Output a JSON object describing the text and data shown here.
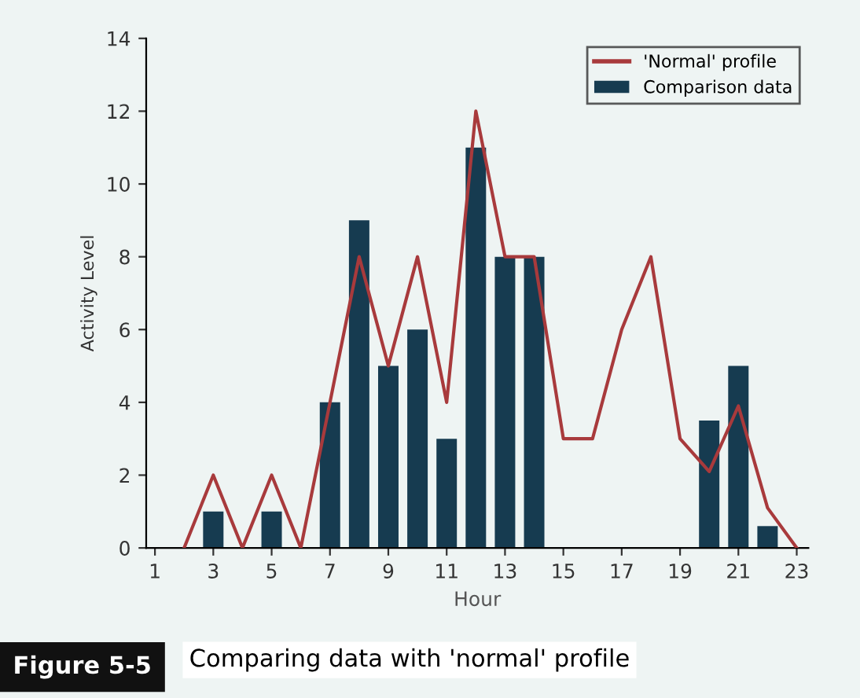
{
  "chart_data": {
    "type": "bar",
    "xlabel": "Hour",
    "ylabel": "Activity Level",
    "xlim": [
      0.7,
      23.4
    ],
    "xticks": [
      1,
      3,
      5,
      7,
      9,
      11,
      13,
      15,
      17,
      19,
      21,
      23
    ],
    "ylim": [
      0,
      14
    ],
    "yticks": [
      0,
      2,
      4,
      6,
      8,
      10,
      12,
      14
    ],
    "legend": "top right",
    "grid": false,
    "series": [
      {
        "name": "'Normal' profile",
        "type": "line",
        "color": "#a83a3c",
        "x": [
          2,
          3,
          4,
          5,
          6,
          7,
          8,
          9,
          10,
          11,
          12,
          13,
          14,
          15,
          16,
          17,
          18,
          19,
          20,
          21,
          22,
          23
        ],
        "values": [
          0,
          2,
          0,
          2,
          0,
          4,
          8,
          5,
          8,
          4,
          12,
          8,
          8,
          3,
          3,
          6,
          8,
          3,
          2.1,
          3.9,
          1.1,
          0
        ]
      },
      {
        "name": "Comparison data",
        "color": "#163b50",
        "x": [
          3,
          5,
          7,
          8,
          9,
          10,
          11,
          12,
          13,
          14,
          20,
          21,
          22
        ],
        "values": [
          1,
          1,
          4,
          9,
          5,
          6,
          3,
          11,
          8,
          8,
          3.5,
          5,
          0.6
        ]
      }
    ],
    "annotations": [
      "Figure 5-5",
      "Comparing data with 'normal' profile"
    ]
  }
}
